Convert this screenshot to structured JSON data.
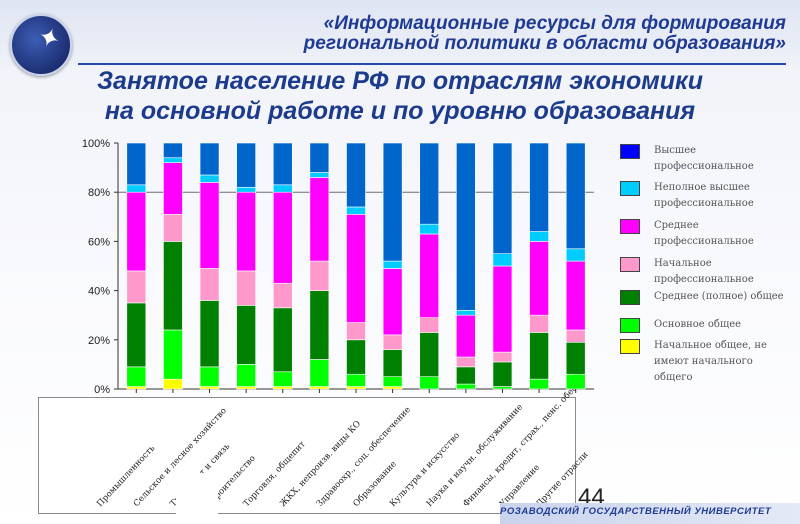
{
  "header": {
    "line1": "«Информационные ресурсы для формирования",
    "line2": "региональной политики в области образования»"
  },
  "slide": {
    "title_line1": "Занятое население РФ по отраслям экономики",
    "title_line2": "на основной работе и по уровню образования",
    "page_number": "44",
    "footer": "РОЗАВОДСКИЙ ГОСУДАРСТВЕННЫЙ УНИВЕРСИТЕТ"
  },
  "chart_data": {
    "type": "bar",
    "stacked": true,
    "percent": true,
    "ylim": [
      0,
      100
    ],
    "y_ticks": [
      "0%",
      "20%",
      "40%",
      "60%",
      "80%",
      "100%"
    ],
    "grid": false,
    "legend_position": "right",
    "categories": [
      "Промышленность",
      "Сельское и лесное хозяйство",
      "Транспорт и связь",
      "Строительство",
      "Торговля, общепит",
      "ЖКХ, непроизв. виды КО",
      "Здравоохр., соц. обеспечение",
      "Образование",
      "Культура и искусство",
      "Наука и научн. обслуживание",
      "Финансы, кредит, страх., пенс. обесп.",
      "Управление",
      "Другие отрасли"
    ],
    "series": [
      {
        "name": "Начальное общее, не имеют начального общего",
        "color": "#ffff00",
        "values": [
          1,
          4,
          1,
          1,
          1,
          1,
          1,
          1,
          0,
          0,
          0,
          0,
          0
        ]
      },
      {
        "name": "Основное общее",
        "color": "#00ff00",
        "values": [
          8,
          20,
          8,
          9,
          6,
          11,
          5,
          4,
          5,
          2,
          1,
          4,
          6
        ]
      },
      {
        "name": "Среднее (полное) общее",
        "color": "#008000",
        "values": [
          26,
          36,
          27,
          24,
          26,
          28,
          14,
          11,
          18,
          7,
          10,
          19,
          13
        ]
      },
      {
        "name": "Начальное профессиональное",
        "color": "#ff99cc",
        "values": [
          13,
          11,
          13,
          14,
          10,
          12,
          7,
          6,
          6,
          4,
          4,
          7,
          5
        ]
      },
      {
        "name": "Среднее профессиональное",
        "color": "#ff00ff",
        "values": [
          32,
          21,
          35,
          32,
          37,
          34,
          44,
          27,
          34,
          17,
          35,
          30,
          28
        ]
      },
      {
        "name": "Неполное высшее профессиональное",
        "color": "#00ccff",
        "values": [
          3,
          2,
          3,
          2,
          3,
          2,
          3,
          3,
          4,
          2,
          5,
          4,
          5
        ]
      },
      {
        "name": "Высшее профессиональное",
        "color": "#0066cc",
        "values": [
          17,
          6,
          13,
          18,
          17,
          12,
          26,
          48,
          33,
          68,
          45,
          36,
          43
        ]
      }
    ]
  },
  "legend": [
    {
      "label": "Высшее профессиональное",
      "color": "#0000ff"
    },
    {
      "label": "Неполное высшее профессиональное",
      "color": "#00ccff"
    },
    {
      "label": "Среднее профессиональное",
      "color": "#ff00ff"
    },
    {
      "label": "Начальное профессиональное",
      "color": "#ff99cc"
    },
    {
      "label": "Среднее (полное) общее",
      "color": "#008000"
    },
    {
      "label": "Основное общее",
      "color": "#00ff00"
    },
    {
      "label": "Начальное общее, не имеют начального общего",
      "color": "#ffff00"
    }
  ]
}
